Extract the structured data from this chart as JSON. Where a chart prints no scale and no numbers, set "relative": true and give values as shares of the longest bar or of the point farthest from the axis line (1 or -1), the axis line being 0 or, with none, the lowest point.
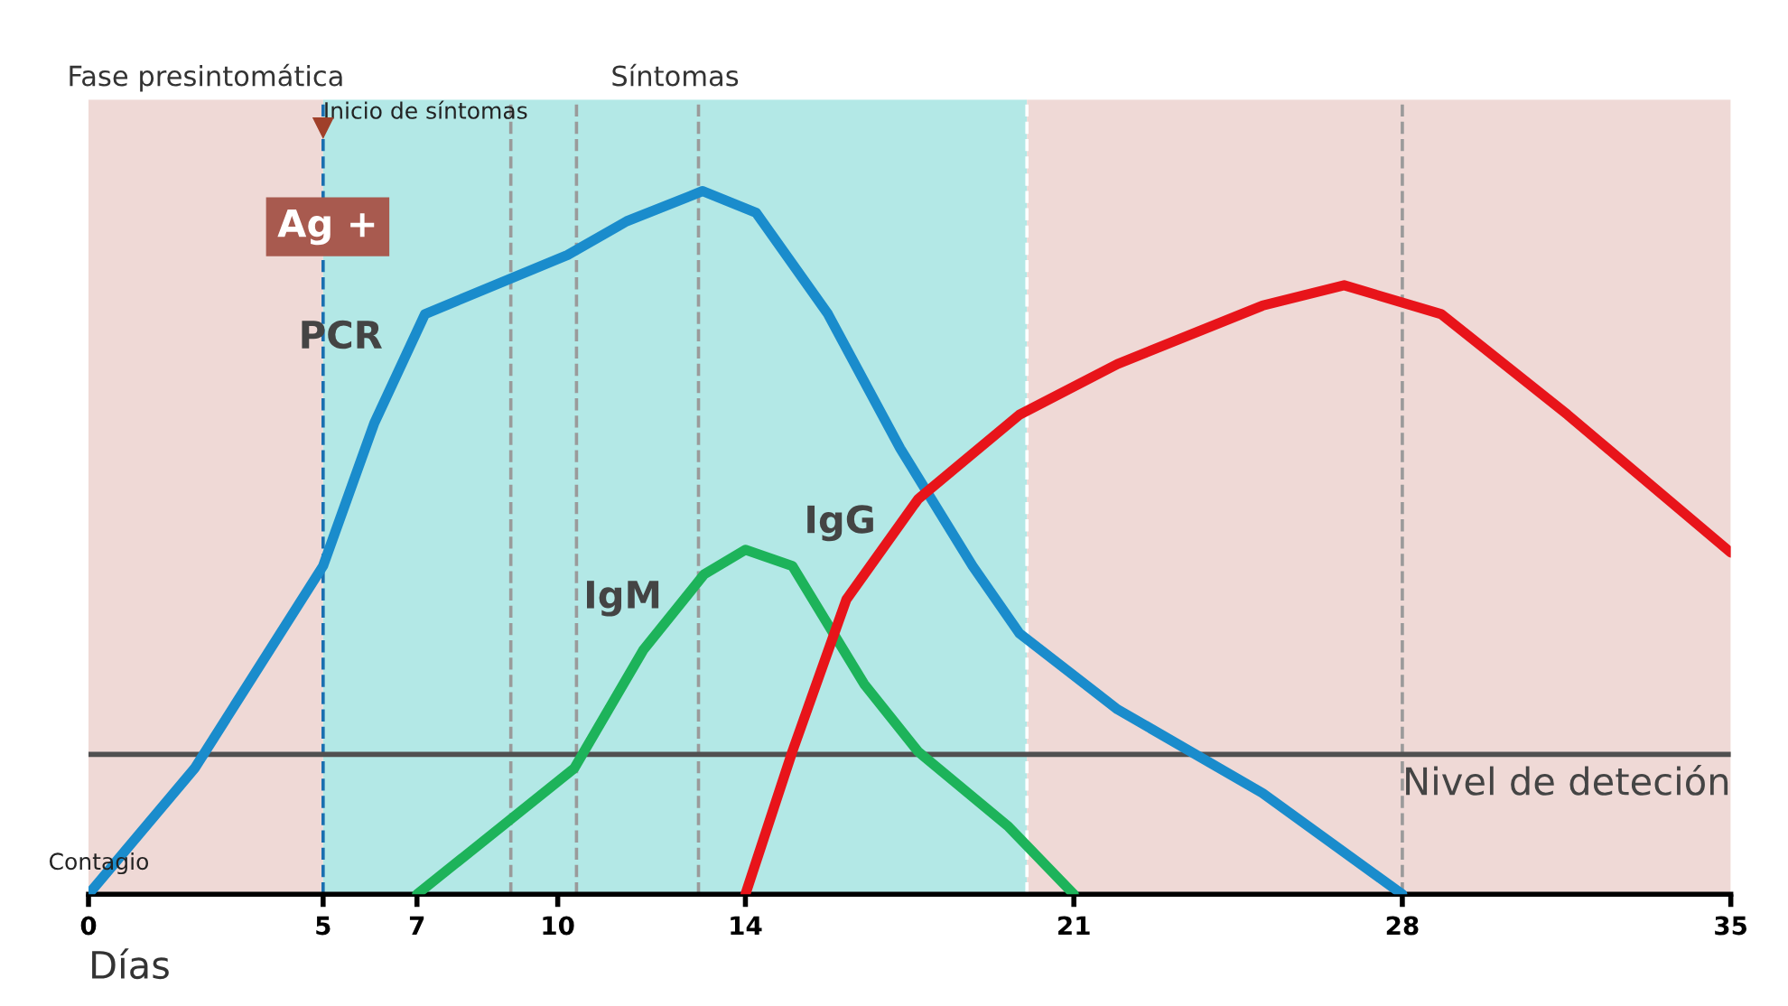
{
  "chart_data": {
    "type": "line",
    "relative": true,
    "xlabel": "Días",
    "xlim": [
      0,
      35
    ],
    "xticks": [
      0,
      5,
      7,
      10,
      14,
      21,
      28,
      35
    ],
    "series": [
      {
        "name": "PCR",
        "color": "#1a8ccc",
        "x": [
          0,
          2.26,
          5,
          6.09,
          7.17,
          10.21,
          11.47,
          13.09,
          14.23,
          15.76,
          17.3,
          18.84,
          19.84,
          21.93,
          25.02,
          28
        ],
        "values": [
          0,
          0.179,
          0.467,
          0.67,
          0.825,
          0.909,
          0.957,
          1.0,
          0.969,
          0.825,
          0.634,
          0.467,
          0.371,
          0.263,
          0.144,
          0
        ]
      },
      {
        "name": "IgM",
        "color": "#1db35a",
        "x": [
          7,
          10.35,
          11.82,
          13.12,
          14,
          15.0,
          16.53,
          17.68,
          19.61,
          21
        ],
        "values": [
          0,
          0.179,
          0.347,
          0.455,
          0.49,
          0.467,
          0.299,
          0.203,
          0.096,
          0
        ]
      },
      {
        "name": "IgG",
        "color": "#e8141a",
        "x": [
          14,
          15.0,
          16.15,
          17.68,
          19.84,
          21.93,
          25.02,
          26.76,
          28.83,
          31.52,
          35
        ],
        "values": [
          0,
          0.203,
          0.419,
          0.562,
          0.682,
          0.754,
          0.837,
          0.866,
          0.825,
          0.682,
          0.486
        ]
      }
    ],
    "bands": [
      {
        "axis": "x",
        "from": 0,
        "to": 5,
        "label": "Fase presintomática",
        "color": "#efd9d6"
      },
      {
        "axis": "x",
        "from": 5,
        "to": 20,
        "label": "Síntomas",
        "color": "#b3e8e6"
      },
      {
        "axis": "x",
        "from": 20,
        "to": 35,
        "label": null,
        "color": "#efd9d6"
      }
    ],
    "ref_lines": [
      {
        "axis": "y",
        "value": 0.199,
        "label": "Nivel de deteción",
        "color": "#505050",
        "line_style": "solid"
      },
      {
        "axis": "x",
        "value": 5,
        "label": "Inicio de síntomas",
        "color": "#1a6fb0",
        "line_style": "dashed"
      },
      {
        "axis": "x",
        "value": 9,
        "label": null,
        "color": "#9a9a9a",
        "line_style": "dashed"
      },
      {
        "axis": "x",
        "value": 10.4,
        "label": null,
        "color": "#9a9a9a",
        "line_style": "dashed"
      },
      {
        "axis": "x",
        "value": 13,
        "label": null,
        "color": "#9a9a9a",
        "line_style": "dashed"
      },
      {
        "axis": "x",
        "value": 20,
        "label": null,
        "color": "#ffffff",
        "line_style": "dashed"
      },
      {
        "axis": "x",
        "value": 28,
        "label": null,
        "color": "#9a9a9a",
        "line_style": "dashed"
      }
    ],
    "annotations": [
      "Ag +",
      {
        "text": "Contagio",
        "x": 0,
        "y": 0
      }
    ],
    "grid": false,
    "legend": false,
    "marker": "none",
    "line_style": "solid"
  }
}
